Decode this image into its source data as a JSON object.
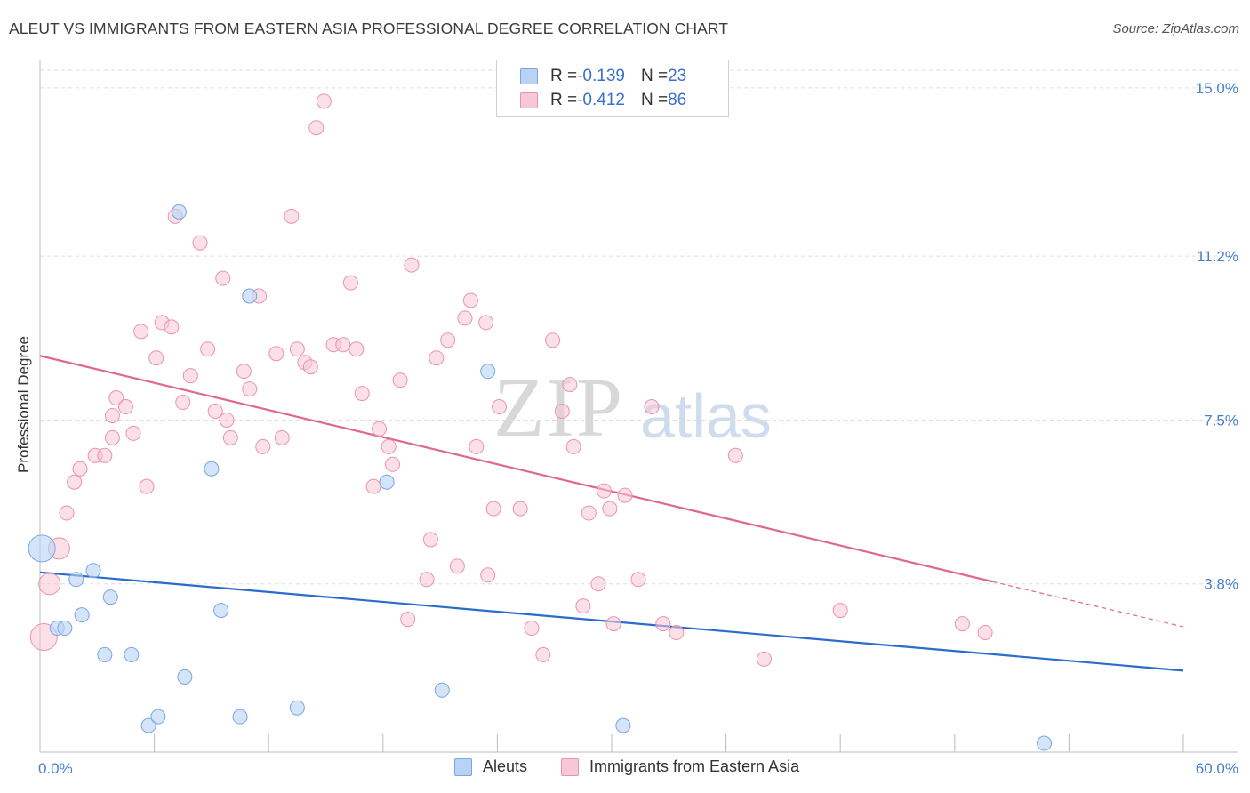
{
  "title": "ALEUT VS IMMIGRANTS FROM EASTERN ASIA PROFESSIONAL DEGREE CORRELATION CHART",
  "source": "Source: ZipAtlas.com",
  "watermark": {
    "zip": "ZIP",
    "atlas": "atlas"
  },
  "legend": {
    "aleut": {
      "r_label": "R = ",
      "r_value": "-0.139",
      "n_label": "N = ",
      "n_value": "23"
    },
    "asia": {
      "r_label": "R = ",
      "r_value": "-0.412",
      "n_label": "N = ",
      "n_value": "86"
    }
  },
  "bottom_legend": {
    "aleut": "Aleuts",
    "asia": "Immigrants from Eastern Asia"
  },
  "colors": {
    "aleut_fill": "#b9d3f5",
    "aleut_stroke": "#7aa6e0",
    "aleut_line": "#2a6ccc",
    "asia_fill": "#f8c7d6",
    "asia_stroke": "#ea93b0",
    "asia_line": "#e0678f",
    "tick_text": "#4a7fcc",
    "grid": "#dddddd"
  },
  "chart_data": {
    "type": "scatter",
    "title": "ALEUT VS IMMIGRANTS FROM EASTERN ASIA PROFESSIONAL DEGREE CORRELATION CHART",
    "xlabel": "",
    "ylabel": "Professional Degree",
    "xlim": [
      0,
      60
    ],
    "ylim": [
      0,
      15.4
    ],
    "x_tick_labels": [
      "0.0%",
      "60.0%"
    ],
    "y_ticks": [
      3.8,
      7.5,
      11.2,
      15.0
    ],
    "y_tick_labels": [
      "3.8%",
      "7.5%",
      "11.2%",
      "15.0%"
    ],
    "grid": true,
    "legend_position": "top-center",
    "series": [
      {
        "name": "Aleuts",
        "points": [
          [
            0.1,
            4.6,
            3
          ],
          [
            0.9,
            2.8,
            1
          ],
          [
            1.3,
            2.8,
            1
          ],
          [
            1.9,
            3.9,
            1
          ],
          [
            2.2,
            3.1,
            1
          ],
          [
            2.8,
            4.1,
            1
          ],
          [
            3.7,
            3.5,
            1
          ],
          [
            3.4,
            2.2,
            1
          ],
          [
            4.8,
            2.2,
            1
          ],
          [
            5.7,
            0.6,
            1
          ],
          [
            6.2,
            0.8,
            1
          ],
          [
            7.3,
            12.2,
            1
          ],
          [
            7.6,
            1.7,
            1
          ],
          [
            9.0,
            6.4,
            1
          ],
          [
            9.5,
            3.2,
            1
          ],
          [
            10.5,
            0.8,
            1
          ],
          [
            11.0,
            10.3,
            1
          ],
          [
            13.5,
            1.0,
            1
          ],
          [
            18.2,
            6.1,
            1
          ],
          [
            21.1,
            1.4,
            1
          ],
          [
            23.5,
            8.6,
            1
          ],
          [
            30.6,
            0.6,
            1
          ],
          [
            52.7,
            0.2,
            1
          ]
        ],
        "trendline": {
          "x": [
            0,
            60
          ],
          "y": [
            4.06,
            1.84
          ]
        }
      },
      {
        "name": "Immigrants from Eastern Asia",
        "points": [
          [
            0.2,
            2.6,
            3
          ],
          [
            0.5,
            3.8,
            2
          ],
          [
            1.0,
            4.6,
            2
          ],
          [
            1.4,
            5.4,
            1
          ],
          [
            1.8,
            6.1,
            1
          ],
          [
            2.1,
            6.4,
            1
          ],
          [
            2.9,
            6.7,
            1
          ],
          [
            3.4,
            6.7,
            1
          ],
          [
            3.8,
            7.1,
            1
          ],
          [
            3.8,
            7.6,
            1
          ],
          [
            4.0,
            8.0,
            1
          ],
          [
            4.5,
            7.8,
            1
          ],
          [
            4.9,
            7.2,
            1
          ],
          [
            5.3,
            9.5,
            1
          ],
          [
            5.6,
            6.0,
            1
          ],
          [
            6.1,
            8.9,
            1
          ],
          [
            6.4,
            9.7,
            1
          ],
          [
            6.9,
            9.6,
            1
          ],
          [
            7.1,
            12.1,
            1
          ],
          [
            7.5,
            7.9,
            1
          ],
          [
            7.9,
            8.5,
            1
          ],
          [
            8.4,
            11.5,
            1
          ],
          [
            8.8,
            9.1,
            1
          ],
          [
            9.2,
            7.7,
            1
          ],
          [
            9.6,
            10.7,
            1
          ],
          [
            9.8,
            7.5,
            1
          ],
          [
            10.0,
            7.1,
            1
          ],
          [
            10.7,
            8.6,
            1
          ],
          [
            11.0,
            8.2,
            1
          ],
          [
            11.5,
            10.3,
            1
          ],
          [
            11.7,
            6.9,
            1
          ],
          [
            12.4,
            9.0,
            1
          ],
          [
            12.7,
            7.1,
            1
          ],
          [
            13.2,
            12.1,
            1
          ],
          [
            13.5,
            9.1,
            1
          ],
          [
            13.9,
            8.8,
            1
          ],
          [
            14.2,
            8.7,
            1
          ],
          [
            14.5,
            14.1,
            1
          ],
          [
            14.9,
            14.7,
            1
          ],
          [
            15.4,
            9.2,
            1
          ],
          [
            15.9,
            9.2,
            1
          ],
          [
            16.3,
            10.6,
            1
          ],
          [
            16.6,
            9.1,
            1
          ],
          [
            16.9,
            8.1,
            1
          ],
          [
            17.5,
            6.0,
            1
          ],
          [
            17.8,
            7.3,
            1
          ],
          [
            18.3,
            6.9,
            1
          ],
          [
            18.5,
            6.5,
            1
          ],
          [
            18.9,
            8.4,
            1
          ],
          [
            19.3,
            3.0,
            1
          ],
          [
            19.5,
            11.0,
            1
          ],
          [
            20.3,
            3.9,
            1
          ],
          [
            20.5,
            4.8,
            1
          ],
          [
            20.8,
            8.9,
            1
          ],
          [
            21.4,
            9.3,
            1
          ],
          [
            21.9,
            4.2,
            1
          ],
          [
            22.3,
            9.8,
            1
          ],
          [
            22.6,
            10.2,
            1
          ],
          [
            22.9,
            6.9,
            1
          ],
          [
            23.4,
            9.7,
            1
          ],
          [
            23.5,
            4.0,
            1
          ],
          [
            23.8,
            5.5,
            1
          ],
          [
            24.1,
            7.8,
            1
          ],
          [
            25.2,
            5.5,
            1
          ],
          [
            25.8,
            2.8,
            1
          ],
          [
            26.4,
            2.2,
            1
          ],
          [
            26.9,
            9.3,
            1
          ],
          [
            27.4,
            7.7,
            1
          ],
          [
            27.8,
            8.3,
            1
          ],
          [
            28.0,
            6.9,
            1
          ],
          [
            28.5,
            3.3,
            1
          ],
          [
            28.8,
            5.4,
            1
          ],
          [
            29.3,
            3.8,
            1
          ],
          [
            29.6,
            5.9,
            1
          ],
          [
            29.9,
            5.5,
            1
          ],
          [
            30.1,
            2.9,
            1
          ],
          [
            30.7,
            5.8,
            1
          ],
          [
            31.4,
            3.9,
            1
          ],
          [
            32.1,
            7.8,
            1
          ],
          [
            32.7,
            2.9,
            1
          ],
          [
            33.4,
            2.7,
            1
          ],
          [
            36.5,
            6.7,
            1
          ],
          [
            38.0,
            2.1,
            1
          ],
          [
            42.0,
            3.2,
            1
          ],
          [
            48.4,
            2.9,
            1
          ],
          [
            49.6,
            2.7,
            1
          ]
        ],
        "trendline": {
          "x": [
            0,
            50.0
          ],
          "y": [
            8.95,
            3.85
          ]
        },
        "trendline_dashed": {
          "x": [
            50.0,
            60
          ],
          "y": [
            3.85,
            2.83
          ]
        }
      }
    ]
  }
}
